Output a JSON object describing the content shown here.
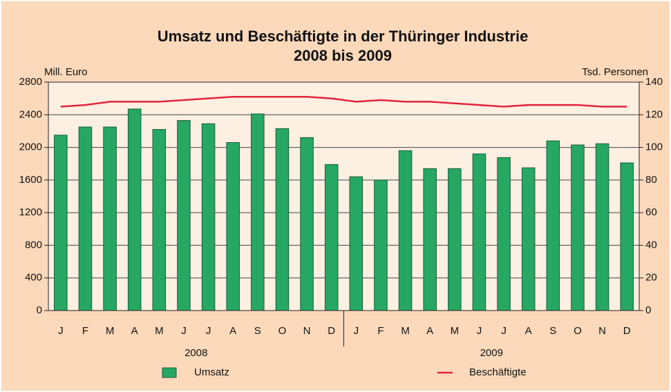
{
  "chart_data": {
    "type": "bar",
    "title": "Umsatz und Beschäftigte in der Thüringer Industrie",
    "subtitle": "2008 bis 2009",
    "ylabel": "Mill. Euro",
    "y2label": "Tsd. Personen",
    "categories": [
      "J",
      "F",
      "M",
      "A",
      "M",
      "J",
      "J",
      "A",
      "S",
      "O",
      "N",
      "D",
      "J",
      "F",
      "M",
      "A",
      "M",
      "J",
      "J",
      "A",
      "S",
      "O",
      "N",
      "D"
    ],
    "years": [
      "2008",
      "2009"
    ],
    "series": [
      {
        "name": "Umsatz",
        "type": "bar",
        "color": "#26a864",
        "values": [
          2150,
          2250,
          2250,
          2470,
          2220,
          2330,
          2290,
          2060,
          2410,
          2230,
          2120,
          1790,
          1640,
          1600,
          1960,
          1740,
          1740,
          1920,
          1875,
          1750,
          2080,
          2030,
          2045,
          1810
        ]
      },
      {
        "name": "Beschäftigte",
        "type": "line",
        "axis": "y2",
        "color": "#e3233c",
        "values": [
          125,
          126,
          128,
          128,
          128,
          129,
          130,
          131,
          131,
          131,
          131,
          130,
          128,
          129,
          128,
          128,
          127,
          126,
          125,
          126,
          126,
          126,
          125,
          125
        ]
      }
    ],
    "ylim": [
      0,
      2800
    ],
    "yticks": [
      0,
      400,
      800,
      1200,
      1600,
      2000,
      2400,
      2800
    ],
    "y2lim": [
      0,
      140
    ],
    "y2ticks": [
      0,
      20,
      40,
      60,
      80,
      100,
      120,
      140
    ],
    "grid": true
  }
}
